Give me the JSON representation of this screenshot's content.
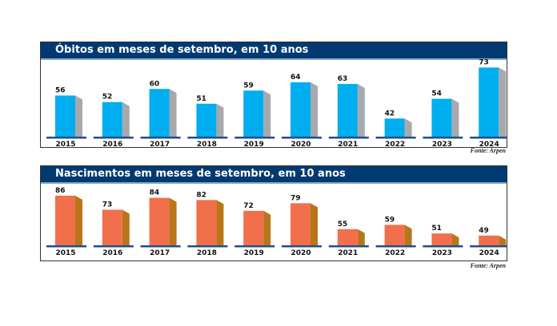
{
  "chart_data": [
    {
      "type": "bar",
      "title": "Óbitos em meses de setembro, em 10 anos",
      "categories": [
        "2015",
        "2016",
        "2017",
        "2018",
        "2019",
        "2020",
        "2021",
        "2022",
        "2023",
        "2024"
      ],
      "values": [
        56,
        52,
        60,
        51,
        59,
        64,
        63,
        42,
        54,
        73
      ],
      "colors": {
        "front": "#00aeef",
        "side": "#a7a9ac"
      },
      "source": "Fonte: Arpen"
    },
    {
      "type": "bar",
      "title": "Nascimentos em meses de setembro, em 10 anos",
      "categories": [
        "2015",
        "2016",
        "2017",
        "2018",
        "2019",
        "2020",
        "2021",
        "2022",
        "2023",
        "2024"
      ],
      "values": [
        86,
        73,
        84,
        82,
        72,
        79,
        55,
        59,
        51,
        49
      ],
      "colors": {
        "front": "#f26f4b",
        "side": "#b8761a"
      },
      "source": "Fonte: Arpen"
    }
  ],
  "colors": {
    "header": "#003a70",
    "baseline": "#1f4e8a"
  }
}
